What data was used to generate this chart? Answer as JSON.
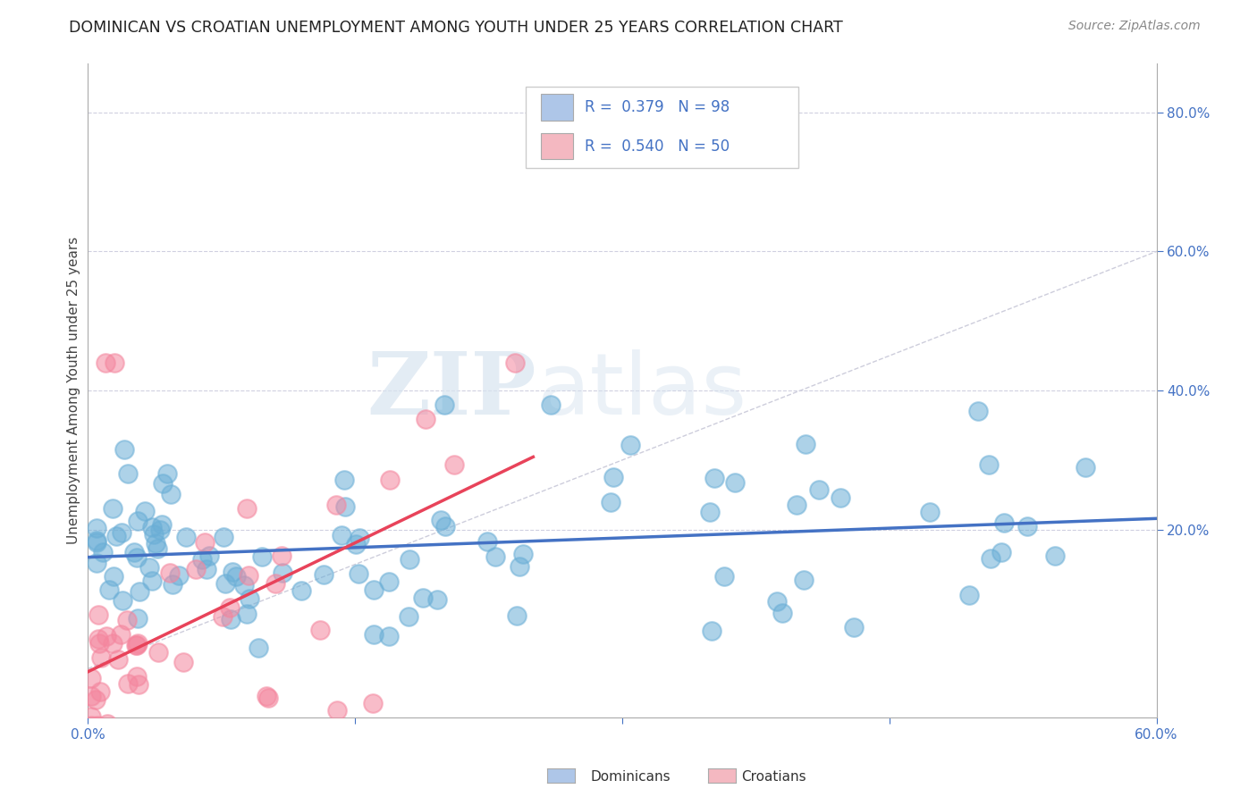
{
  "title": "DOMINICAN VS CROATIAN UNEMPLOYMENT AMONG YOUTH UNDER 25 YEARS CORRELATION CHART",
  "source": "Source: ZipAtlas.com",
  "ylabel": "Unemployment Among Youth under 25 years",
  "right_yticks": [
    "80.0%",
    "60.0%",
    "40.0%",
    "20.0%"
  ],
  "right_ytick_vals": [
    0.8,
    0.6,
    0.4,
    0.2
  ],
  "legend1_color": "#aec6e8",
  "legend2_color": "#f4b8c1",
  "dominican_color": "#6aaed6",
  "croatian_color": "#f4869e",
  "trend_dominican_color": "#4472c4",
  "trend_croatian_color": "#e8435a",
  "watermark_zip": "ZIP",
  "watermark_atlas": "atlas",
  "background_color": "#ffffff",
  "grid_color": "#d0d0e0",
  "xmin": 0.0,
  "xmax": 0.6,
  "ymin": -0.07,
  "ymax": 0.87,
  "dom_seed": 7,
  "cro_seed": 42,
  "title_fontsize": 12.5,
  "source_fontsize": 10,
  "tick_fontsize": 11,
  "ylabel_fontsize": 11
}
